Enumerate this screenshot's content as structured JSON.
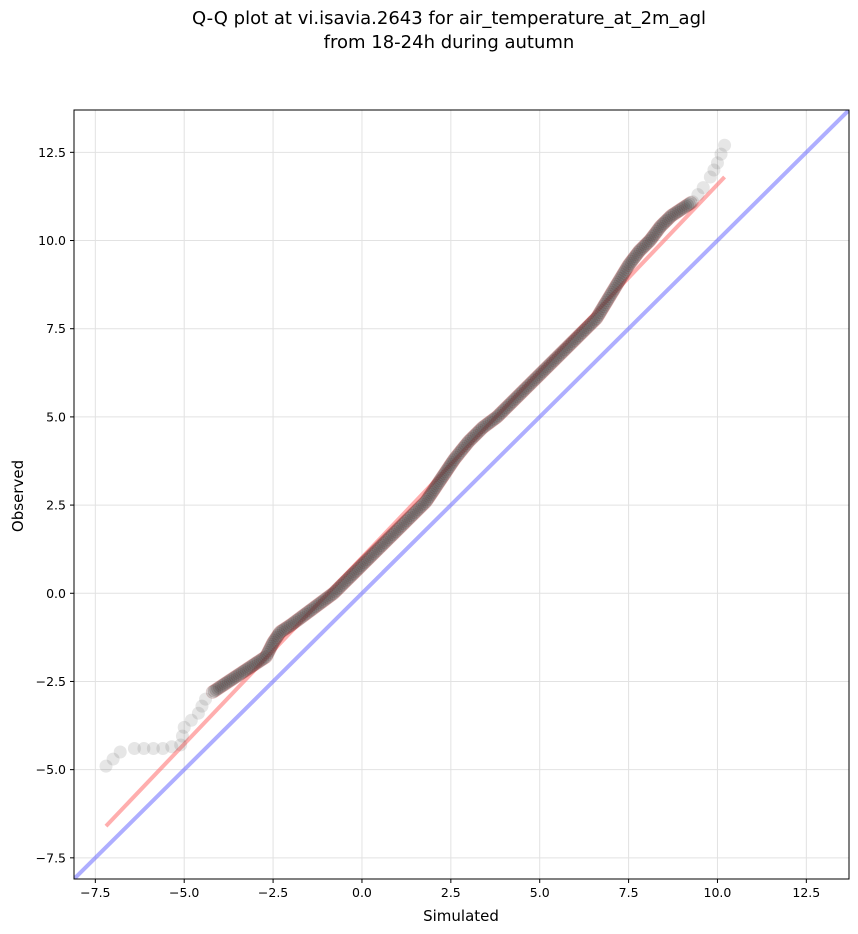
{
  "chart_data": {
    "type": "scatter",
    "title_lines": [
      "Q-Q plot at vi.isavia.2643 for air_temperature_at_2m_agl",
      "from 18-24h during autumn"
    ],
    "xlabel": "Simulated",
    "ylabel": "Observed",
    "xlim": [
      -8.1,
      13.7
    ],
    "ylim": [
      -8.1,
      13.7
    ],
    "xticks": [
      -7.5,
      -5.0,
      -2.5,
      0.0,
      2.5,
      5.0,
      7.5,
      10.0,
      12.5
    ],
    "yticks": [
      -7.5,
      -5.0,
      -2.5,
      0.0,
      2.5,
      5.0,
      7.5,
      10.0,
      12.5
    ],
    "xtick_labels": [
      "−7.5",
      "−5.0",
      "−2.5",
      "0.0",
      "2.5",
      "5.0",
      "7.5",
      "10.0",
      "12.5"
    ],
    "ytick_labels": [
      "−7.5",
      "−5.0",
      "−2.5",
      "0.0",
      "2.5",
      "5.0",
      "7.5",
      "10.0",
      "12.5"
    ],
    "grid": true,
    "colors": {
      "points": "#3a3a3a",
      "fit_line": "#ff6b6b",
      "identity_line": "#6b6bff",
      "point_outline": "#b00000"
    },
    "quantile_curve": {
      "x": [
        -7.2,
        -7.0,
        -6.8,
        -6.4,
        -5.6,
        -5.1,
        -5.0,
        -4.8,
        -4.6,
        -4.4,
        -4.2,
        -3.9,
        -3.6,
        -3.3,
        -3.0,
        -2.7,
        -2.5,
        -2.3,
        -2.0,
        -1.6,
        -1.2,
        -0.8,
        -0.4,
        -0.1,
        0.2,
        0.6,
        1.0,
        1.4,
        1.8,
        2.2,
        2.6,
        3.0,
        3.4,
        3.8,
        4.2,
        4.6,
        5.0,
        5.4,
        5.8,
        6.2,
        6.6,
        6.9,
        7.2,
        7.5,
        7.8,
        8.1,
        8.4,
        8.7,
        9.0,
        9.3,
        9.6,
        9.8,
        10.0,
        10.2
      ],
      "y": [
        -4.9,
        -4.7,
        -4.5,
        -4.4,
        -4.4,
        -4.3,
        -3.8,
        -3.6,
        -3.4,
        -3.0,
        -2.8,
        -2.6,
        -2.4,
        -2.2,
        -2.0,
        -1.8,
        -1.4,
        -1.1,
        -0.9,
        -0.6,
        -0.3,
        0.0,
        0.4,
        0.7,
        1.0,
        1.4,
        1.8,
        2.2,
        2.6,
        3.2,
        3.8,
        4.3,
        4.7,
        5.0,
        5.4,
        5.8,
        6.2,
        6.6,
        7.0,
        7.4,
        7.8,
        8.3,
        8.8,
        9.3,
        9.7,
        10.0,
        10.4,
        10.7,
        10.9,
        11.1,
        11.5,
        11.8,
        12.2,
        12.7
      ]
    },
    "series": [
      {
        "x": [
          -7.2,
          10.2
        ],
        "y": [
          -6.6,
          11.8
        ]
      },
      {
        "x": [
          -8.1,
          13.7
        ],
        "y": [
          -8.1,
          13.7
        ]
      }
    ]
  }
}
